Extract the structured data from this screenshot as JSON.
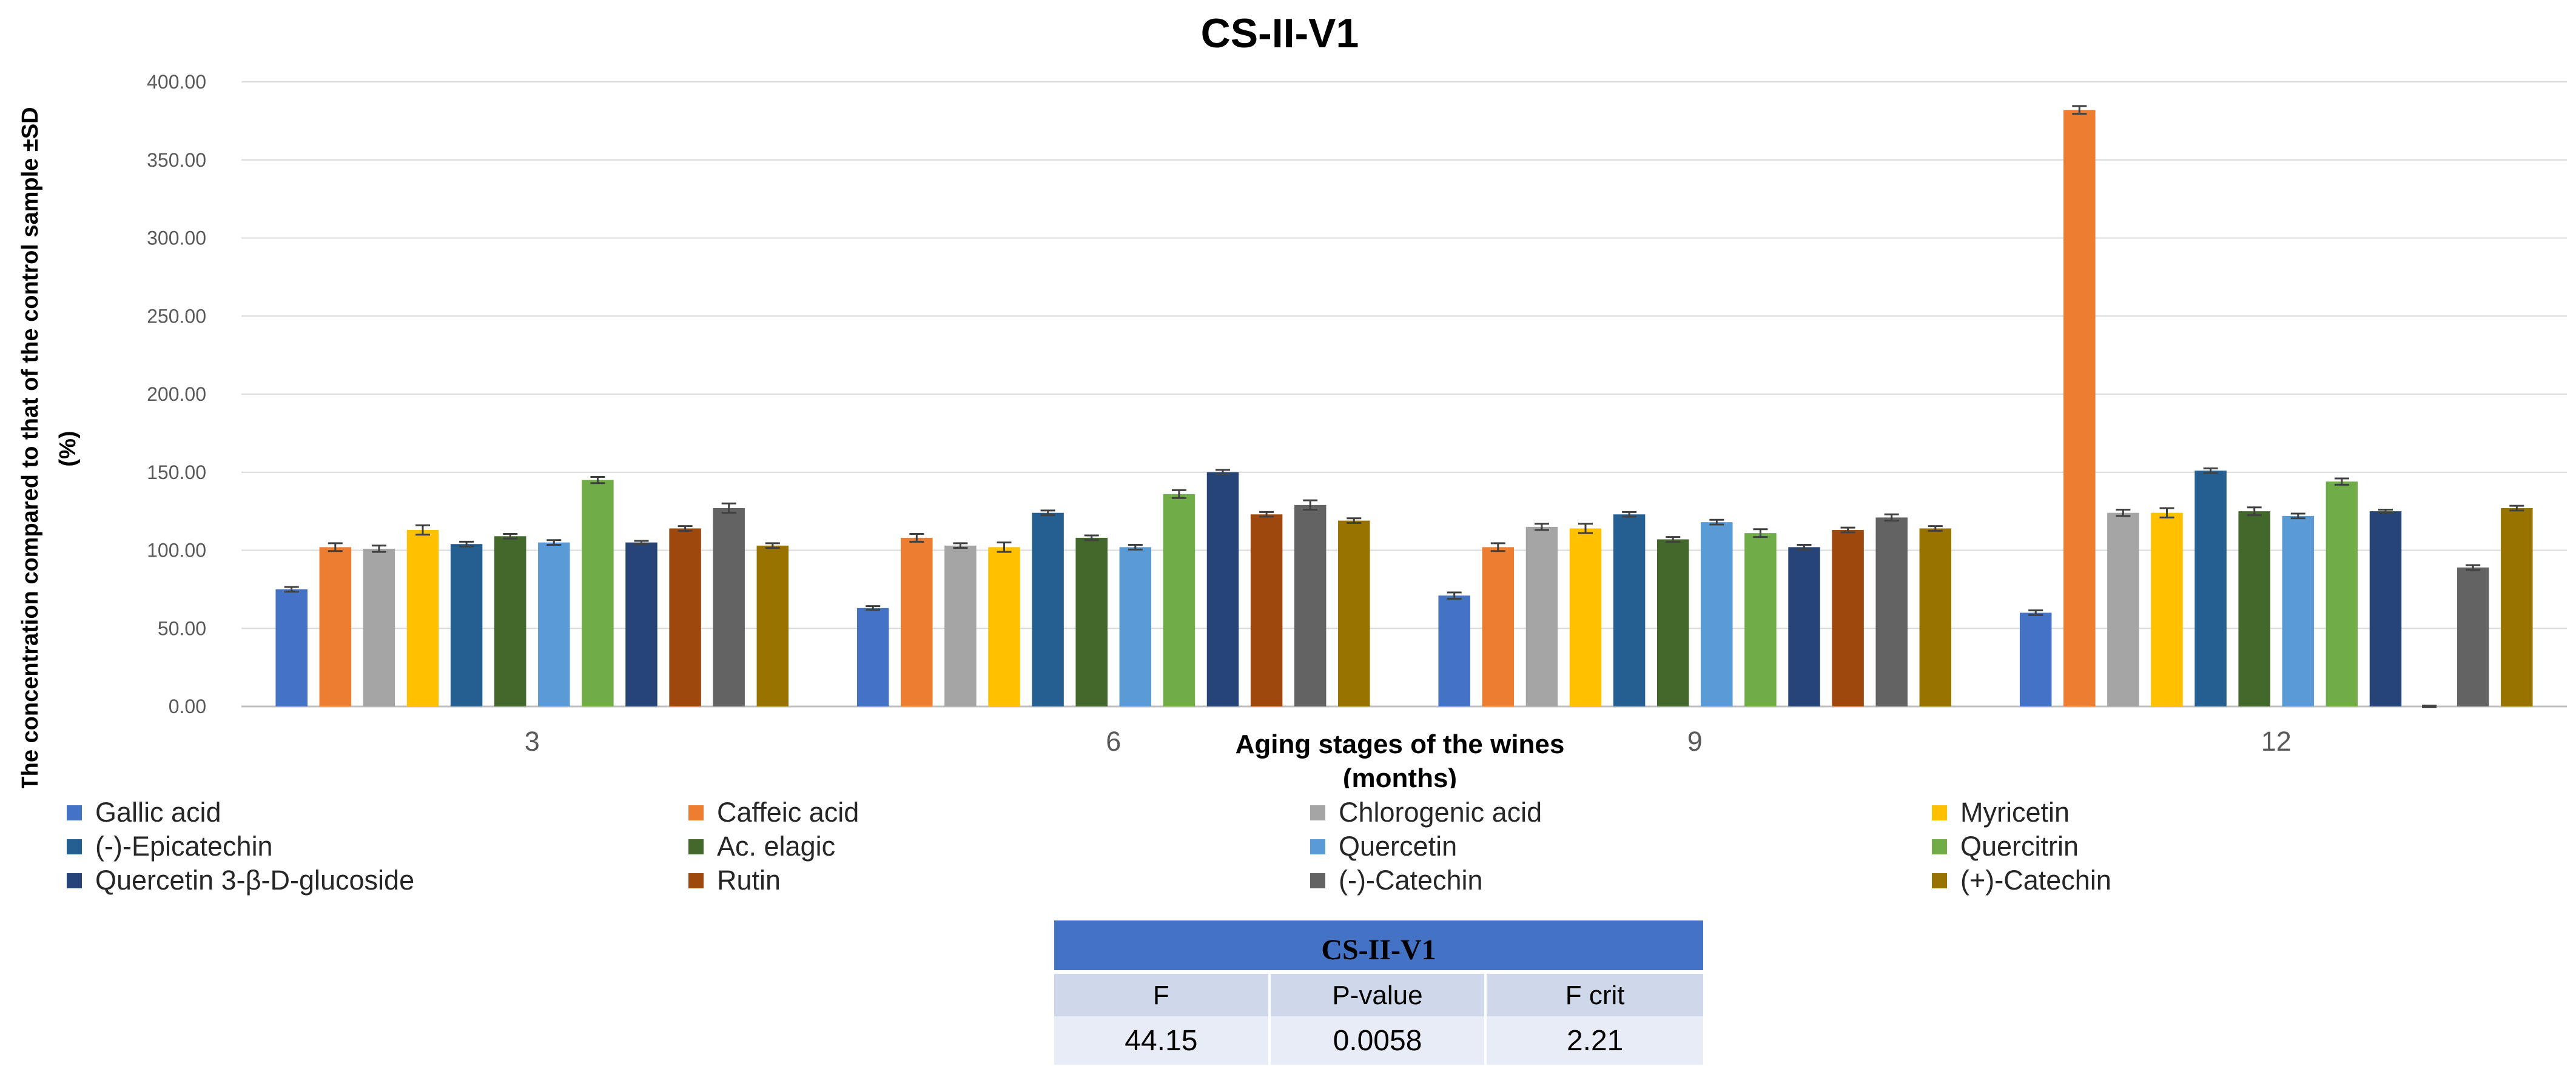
{
  "chart_data": {
    "type": "bar",
    "title": "CS-II-V1",
    "xlabel": "Aging stages of the wines (months)",
    "xlabel_lines": [
      "Aging stages of the wines",
      "(months)"
    ],
    "ylabel": "The concentration compared to that of the control sample ±SD (%)",
    "ylabel_lines": [
      "The concentration compared to that of the control sample ±SD",
      "(%)"
    ],
    "ylim": [
      0,
      400
    ],
    "yticks": [
      0,
      50,
      100,
      150,
      200,
      250,
      300,
      350,
      400
    ],
    "ytick_labels": [
      "0.00",
      "50.00",
      "100.00",
      "150.00",
      "200.00",
      "250.00",
      "300.00",
      "350.00",
      "400.00"
    ],
    "grid": true,
    "categories": [
      "3",
      "6",
      "9",
      "12"
    ],
    "series": [
      {
        "name": "Gallic acid",
        "color": "#4472c4",
        "values": [
          75,
          63,
          71,
          60
        ],
        "sd": [
          1.5,
          1.2,
          2,
          1.5
        ]
      },
      {
        "name": "Caffeic acid",
        "color": "#ed7d31",
        "values": [
          102,
          108,
          102,
          382
        ],
        "sd": [
          2.5,
          2.5,
          2.5,
          2.5
        ]
      },
      {
        "name": "Chlorogenic acid",
        "color": "#a5a5a5",
        "values": [
          101,
          103,
          115,
          124
        ],
        "sd": [
          2,
          1.5,
          2,
          2
        ]
      },
      {
        "name": "Myricetin",
        "color": "#ffc000",
        "values": [
          113,
          102,
          114,
          124
        ],
        "sd": [
          3,
          3,
          3,
          3
        ]
      },
      {
        "name": "(-)-Epicatechin",
        "color": "#255e91",
        "values": [
          104,
          124,
          123,
          151
        ],
        "sd": [
          1.5,
          1.5,
          1.5,
          1.5
        ]
      },
      {
        "name": "Ac. elagic",
        "color": "#43682b",
        "values": [
          109,
          108,
          107,
          125
        ],
        "sd": [
          1.5,
          1.5,
          1.5,
          2.5
        ]
      },
      {
        "name": "Quercetin",
        "color": "#5b9bd5",
        "values": [
          105,
          102,
          118,
          122
        ],
        "sd": [
          1.5,
          1.5,
          1.5,
          1.5
        ]
      },
      {
        "name": "Quercitrin",
        "color": "#70ad47",
        "values": [
          145,
          136,
          111,
          144
        ],
        "sd": [
          2,
          2.5,
          2.5,
          2
        ]
      },
      {
        "name": "Quercetin 3-β-D-glucoside",
        "color": "#264478",
        "values": [
          105,
          150,
          102,
          125
        ],
        "sd": [
          1,
          1.5,
          1.5,
          1
        ]
      },
      {
        "name": "Rutin",
        "color": "#9e480e",
        "values": [
          114,
          123,
          113,
          0
        ],
        "sd": [
          1.5,
          1.5,
          1.5,
          0.5
        ]
      },
      {
        "name": "(-)-Catechin",
        "color": "#636363",
        "values": [
          127,
          129,
          121,
          89
        ],
        "sd": [
          3,
          3,
          2,
          1.5
        ]
      },
      {
        "name": "(+)-Catechin",
        "color": "#997300",
        "values": [
          103,
          119,
          114,
          127
        ],
        "sd": [
          1.5,
          1.5,
          1.5,
          1.5
        ]
      }
    ]
  },
  "stats_table": {
    "title": "CS-II-V1",
    "headers": [
      "F",
      "P-value",
      "F crit"
    ],
    "values": [
      "44.15",
      "0.0058",
      "2.21"
    ]
  }
}
